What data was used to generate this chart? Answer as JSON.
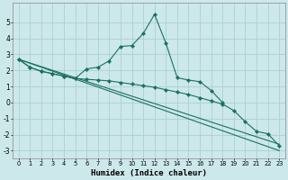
{
  "xlabel": "Humidex (Indice chaleur)",
  "background_color": "#cce8ea",
  "grid_color": "#aacfd2",
  "line_color": "#1a7060",
  "xlim": [
    -0.5,
    23.5
  ],
  "ylim": [
    -3.5,
    6.2
  ],
  "yticks": [
    -3,
    -2,
    -1,
    0,
    1,
    2,
    3,
    4,
    5
  ],
  "xticks": [
    0,
    1,
    2,
    3,
    4,
    5,
    6,
    7,
    8,
    9,
    10,
    11,
    12,
    13,
    14,
    15,
    16,
    17,
    18,
    19,
    20,
    21,
    22,
    23
  ],
  "lines": [
    {
      "x": [
        0,
        1,
        2,
        3,
        4,
        5,
        6,
        7,
        8,
        9,
        10,
        11,
        12,
        13,
        14,
        15,
        16,
        17,
        18
      ],
      "y": [
        2.7,
        2.2,
        1.95,
        1.8,
        1.65,
        1.5,
        2.1,
        2.2,
        2.6,
        3.5,
        3.55,
        4.3,
        5.5,
        3.7,
        1.55,
        1.4,
        1.3,
        0.75,
        0.0
      ],
      "marker": true
    },
    {
      "x": [
        0,
        1,
        2,
        3,
        4,
        5,
        6,
        7,
        8,
        9,
        10,
        11,
        12,
        13,
        14,
        15,
        16,
        17,
        18,
        19,
        20,
        21,
        22,
        23
      ],
      "y": [
        2.7,
        2.2,
        1.95,
        1.8,
        1.65,
        1.5,
        1.45,
        1.4,
        1.35,
        1.25,
        1.15,
        1.05,
        0.95,
        0.8,
        0.65,
        0.5,
        0.3,
        0.1,
        -0.1,
        -0.5,
        -1.2,
        -1.8,
        -1.95,
        -2.7
      ],
      "marker": true
    },
    {
      "x": [
        0,
        23
      ],
      "y": [
        2.7,
        -2.6
      ],
      "marker": false
    },
    {
      "x": [
        0,
        23
      ],
      "y": [
        2.7,
        -3.0
      ],
      "marker": false
    }
  ]
}
